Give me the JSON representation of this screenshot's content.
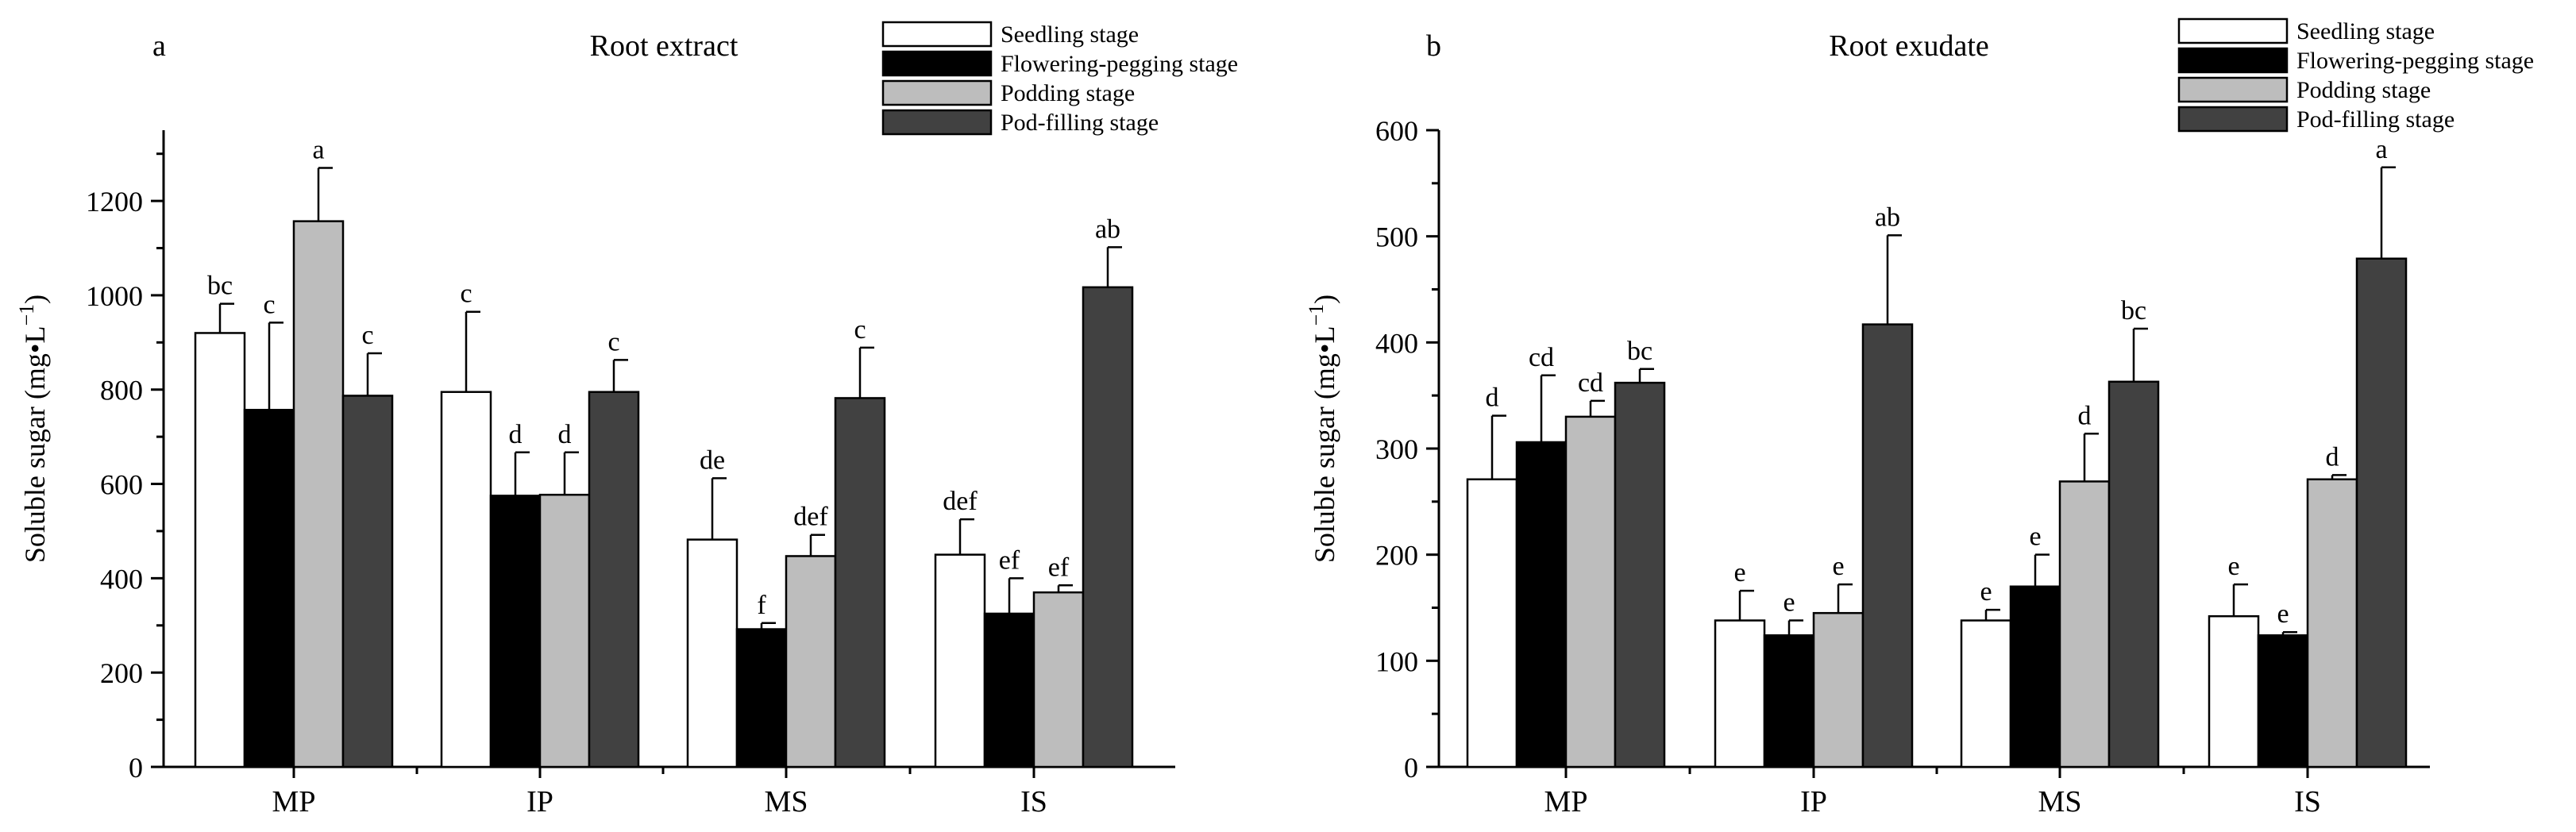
{
  "chart_data": [
    {
      "type": "bar",
      "panel_label": "a",
      "title": "Root extract",
      "xlabel": "",
      "ylabel": "Soluble sugar (mg•L",
      "ylabel_superscript": "−1",
      "ylabel_suffix": ")",
      "ylim": [
        0,
        1350
      ],
      "yticks": [
        0,
        200,
        400,
        600,
        800,
        1000,
        1200
      ],
      "categories": [
        "MP",
        "IP",
        "MS",
        "IS"
      ],
      "legend_position": "top-right",
      "series": [
        {
          "name": "Seedling stage",
          "color": "#ffffff",
          "values": [
            920,
            795,
            482,
            450
          ],
          "errors": [
            62,
            170,
            130,
            75
          ],
          "letters": [
            "bc",
            "c",
            "de",
            "def"
          ]
        },
        {
          "name": "Flowering-pegging stage",
          "color": "#000000",
          "values": [
            757,
            575,
            292,
            325
          ],
          "errors": [
            185,
            92,
            13,
            75
          ],
          "letters": [
            "c",
            "d",
            "f",
            "ef"
          ]
        },
        {
          "name": "Podding stage",
          "color": "#bdbdbd",
          "values": [
            1157,
            577,
            447,
            370
          ],
          "errors": [
            113,
            90,
            45,
            15
          ],
          "letters": [
            "a",
            "d",
            "def",
            "ef"
          ]
        },
        {
          "name": "Pod-filling stage",
          "color": "#414141",
          "values": [
            787,
            795,
            782,
            1017
          ],
          "errors": [
            90,
            68,
            107,
            85
          ],
          "letters": [
            "c",
            "c",
            "c",
            "ab"
          ]
        }
      ]
    },
    {
      "type": "bar",
      "panel_label": "b",
      "title": "Root exudate",
      "xlabel": "",
      "ylabel": "Soluble sugar (mg•L",
      "ylabel_superscript": "−1",
      "ylabel_suffix": ")",
      "ylim": [
        0,
        600
      ],
      "yticks": [
        0,
        100,
        200,
        300,
        400,
        500,
        600
      ],
      "categories": [
        "MP",
        "IP",
        "MS",
        "IS"
      ],
      "legend_position": "top-right",
      "series": [
        {
          "name": "Seedling stage",
          "color": "#ffffff",
          "values": [
            271,
            138,
            138,
            142
          ],
          "errors": [
            60,
            28,
            10,
            30
          ],
          "letters": [
            "d",
            "e",
            "e",
            "e"
          ]
        },
        {
          "name": "Flowering-pegging stage",
          "color": "#000000",
          "values": [
            306,
            124,
            170,
            124
          ],
          "errors": [
            63,
            14,
            30,
            3
          ],
          "letters": [
            "cd",
            "e",
            "e",
            "e"
          ]
        },
        {
          "name": "Podding stage",
          "color": "#bdbdbd",
          "values": [
            330,
            145,
            269,
            271
          ],
          "errors": [
            15,
            27,
            45,
            4
          ],
          "letters": [
            "cd",
            "e",
            "d",
            "d"
          ]
        },
        {
          "name": "Pod-filling stage",
          "color": "#414141",
          "values": [
            362,
            417,
            363,
            479
          ],
          "errors": [
            13,
            84,
            50,
            86
          ],
          "letters": [
            "bc",
            "ab",
            "bc",
            "a"
          ]
        }
      ]
    }
  ]
}
